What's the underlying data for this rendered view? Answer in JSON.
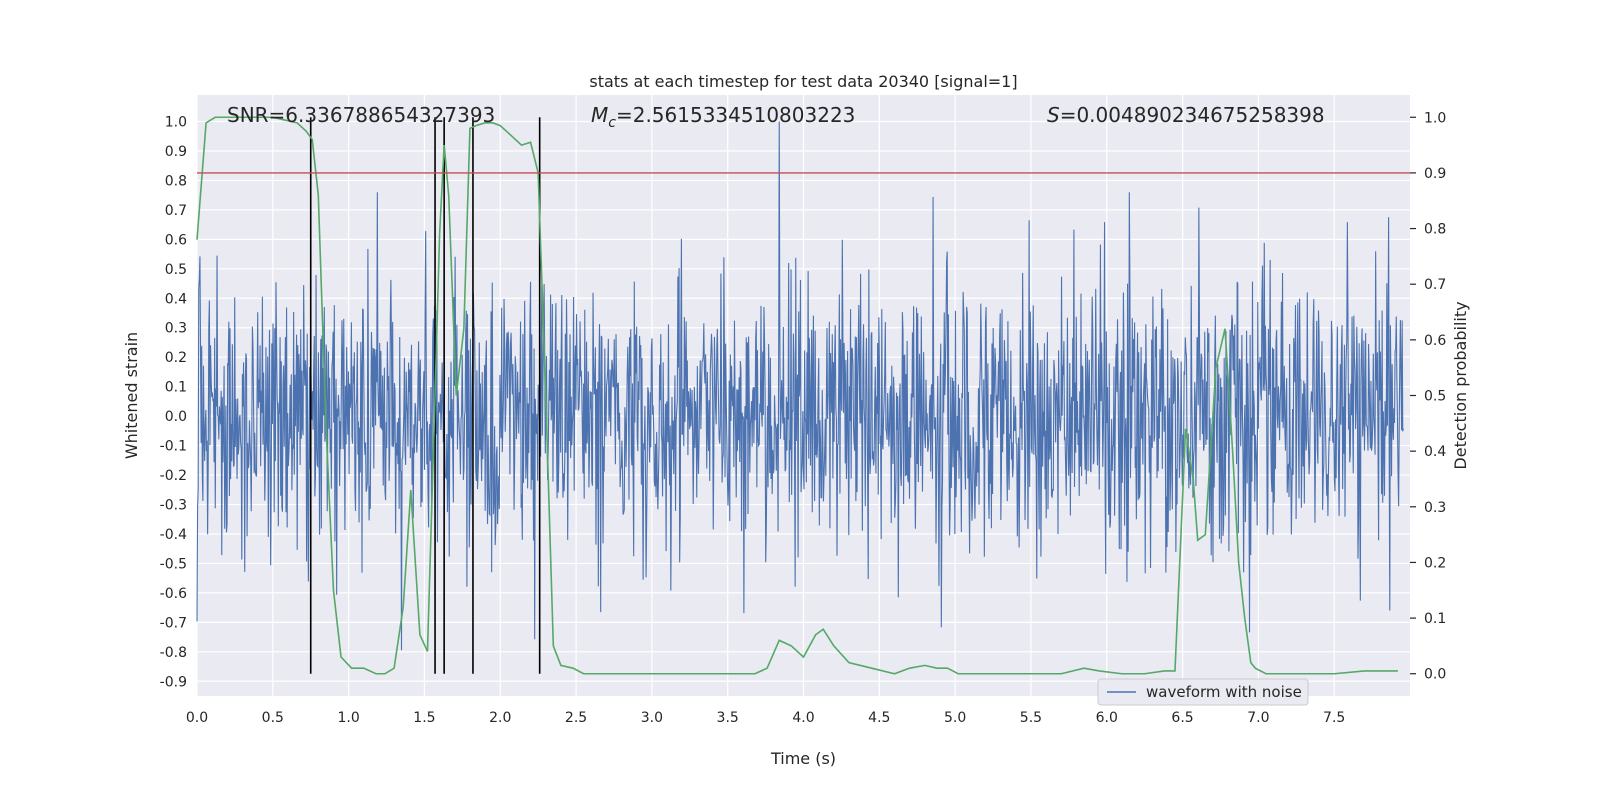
{
  "chart_data": {
    "type": "line",
    "title": "stats at each timestep for test data 20340 [signal=1]",
    "xlabel": "Time (s)",
    "ylabel": "Whitened strain",
    "y2label": "Detection probability",
    "xlim": [
      0.0,
      8.0
    ],
    "ylim": [
      -0.95,
      1.09
    ],
    "y2lim": [
      -0.04,
      1.04
    ],
    "xticks": [
      "0.0",
      "0.5",
      "1.0",
      "1.5",
      "2.0",
      "2.5",
      "3.0",
      "3.5",
      "4.0",
      "4.5",
      "5.0",
      "5.5",
      "6.0",
      "6.5",
      "7.0",
      "7.5"
    ],
    "yticks": [
      "1.0",
      "0.9",
      "0.8",
      "0.7",
      "0.6",
      "0.5",
      "0.4",
      "0.3",
      "0.2",
      "0.1",
      "0.0",
      "-0.1",
      "-0.2",
      "-0.3",
      "-0.4",
      "-0.5",
      "-0.6",
      "-0.7",
      "-0.8",
      "-0.9"
    ],
    "y2ticks": [
      "1.0",
      "0.9",
      "0.8",
      "0.7",
      "0.6",
      "0.5",
      "0.4",
      "0.3",
      "0.2",
      "0.1",
      "0.0"
    ],
    "annotations": {
      "snr": "SNR=6.336788654327393",
      "mc": "M",
      "mc_sub": "c",
      "mc_value": "=2.5615334510803223",
      "s": "S",
      "s_value": "=0.004890234675258398"
    },
    "legend": {
      "label": "waveform with noise",
      "placement": "lower-right"
    },
    "threshold": {
      "value": 0.9,
      "axis": "secondary",
      "color": "#c44e52"
    },
    "event_lines": [
      0.75,
      1.57,
      1.63,
      1.82,
      2.26
    ],
    "waveform": {
      "name": "waveform with noise",
      "color": "#4c72b0",
      "seed": 20340,
      "n": 2048,
      "spike_at": 3.84,
      "spike_value": 1.0
    },
    "probability_series": {
      "color": "#55a868",
      "x": [
        0.0,
        0.06,
        0.12,
        0.2,
        0.3,
        0.4,
        0.5,
        0.58,
        0.66,
        0.72,
        0.76,
        0.8,
        0.85,
        0.9,
        0.95,
        1.02,
        1.1,
        1.18,
        1.24,
        1.3,
        1.36,
        1.41,
        1.47,
        1.52,
        1.57,
        1.6,
        1.63,
        1.66,
        1.71,
        1.76,
        1.8,
        1.84,
        1.9,
        1.95,
        2.0,
        2.06,
        2.14,
        2.2,
        2.25,
        2.3,
        2.35,
        2.4,
        2.48,
        2.55,
        2.65,
        2.8,
        3.0,
        3.2,
        3.45,
        3.6,
        3.68,
        3.76,
        3.84,
        3.92,
        4.0,
        4.08,
        4.13,
        4.2,
        4.3,
        4.45,
        4.6,
        4.7,
        4.8,
        4.88,
        4.95,
        5.02,
        5.1,
        5.2,
        5.35,
        5.5,
        5.7,
        5.85,
        5.95,
        6.1,
        6.25,
        6.38,
        6.45,
        6.52,
        6.57,
        6.6,
        6.65,
        6.72,
        6.78,
        6.83,
        6.87,
        6.91,
        6.95,
        6.98,
        7.05,
        7.15,
        7.3,
        7.5,
        7.7,
        7.85,
        7.92
      ],
      "y": [
        0.78,
        0.99,
        1.0,
        1.0,
        1.0,
        1.0,
        1.0,
        0.995,
        0.99,
        0.975,
        0.96,
        0.86,
        0.45,
        0.15,
        0.03,
        0.01,
        0.01,
        0.0,
        0.0,
        0.01,
        0.12,
        0.33,
        0.07,
        0.04,
        0.5,
        0.79,
        0.95,
        0.86,
        0.5,
        0.62,
        0.98,
        0.985,
        0.99,
        0.99,
        0.985,
        0.97,
        0.95,
        0.955,
        0.9,
        0.5,
        0.05,
        0.015,
        0.01,
        0.0,
        0.0,
        0.0,
        0.0,
        0.0,
        0.0,
        0.0,
        0.0,
        0.01,
        0.06,
        0.05,
        0.03,
        0.07,
        0.08,
        0.05,
        0.02,
        0.01,
        0.0,
        0.01,
        0.015,
        0.01,
        0.01,
        0.0,
        0.0,
        0.0,
        0.0,
        0.0,
        0.0,
        0.01,
        0.005,
        0.0,
        0.0,
        0.005,
        0.005,
        0.44,
        0.35,
        0.24,
        0.25,
        0.55,
        0.62,
        0.4,
        0.2,
        0.1,
        0.02,
        0.01,
        0.0,
        0.0,
        0.0,
        0.0,
        0.005,
        0.005,
        0.005
      ]
    }
  }
}
